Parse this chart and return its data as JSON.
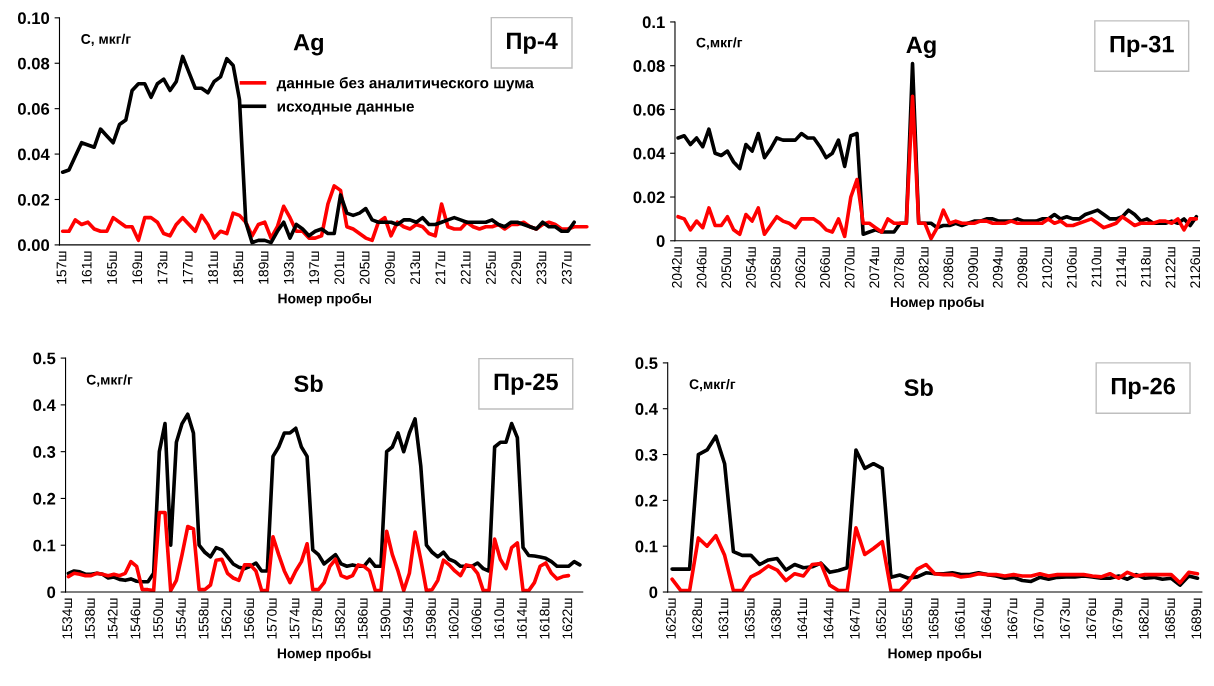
{
  "chart_data": [
    {
      "type": "line",
      "title": "Ag",
      "ylabel": "С, мкг/г",
      "xlabel": "Номер пробы",
      "annotations": [
        "Пр-4"
      ],
      "legend": "top right",
      "grid": false,
      "categories": [
        "157ш",
        null,
        null,
        null,
        "161ш",
        null,
        null,
        null,
        "165ш",
        null,
        null,
        null,
        "169ш",
        null,
        null,
        null,
        "173ш",
        null,
        null,
        null,
        "177ш",
        null,
        null,
        null,
        "181ш",
        null,
        null,
        null,
        "185ш",
        null,
        null,
        null,
        "189ш",
        null,
        null,
        null,
        "193ш",
        null,
        null,
        null,
        "197ш",
        null,
        null,
        null,
        "201ш",
        null,
        null,
        null,
        "205ш",
        null,
        null,
        null,
        "209ш",
        null,
        null,
        null,
        "213ш",
        null,
        null,
        null,
        "217ш",
        null,
        null,
        null,
        "221ш",
        null,
        null,
        null,
        "225ш",
        null,
        null,
        null,
        "229ш",
        null,
        null,
        null,
        "233ш",
        null,
        null,
        null,
        "237ш",
        null,
        null,
        null
      ],
      "ylim": [
        0,
        0.1
      ],
      "yticks": [
        {
          "value": 0,
          "label": "0.00"
        },
        0.02,
        0.04,
        0.06,
        0.08,
        {
          "value": 0.1,
          "label": "0.10"
        }
      ],
      "series": [
        {
          "name": "данные без аналитического шума",
          "color": "#ff0000",
          "values": [
            0.006,
            0.006,
            0.011,
            0.009,
            0.01,
            0.007,
            0.006,
            0.006,
            0.012,
            0.01,
            0.008,
            0.008,
            0.002,
            0.012,
            0.012,
            0.01,
            0.005,
            0.004,
            0.009,
            0.012,
            0.009,
            0.006,
            0.013,
            0.009,
            0.003,
            0.006,
            0.005,
            0.014,
            0.013,
            0.01,
            0.004,
            0.009,
            0.01,
            0.003,
            0.008,
            0.017,
            0.012,
            0.006,
            0.006,
            0.003,
            0.003,
            0.004,
            0.018,
            0.026,
            0.024,
            0.008,
            0.007,
            0.005,
            0.003,
            0.002,
            0.01,
            0.012,
            0.004,
            0.01,
            0.008,
            0.007,
            0.009,
            0.008,
            0.005,
            0.004,
            0.018,
            0.008,
            0.007,
            0.007,
            0.01,
            0.008,
            0.007,
            0.008,
            0.008,
            0.009,
            0.007,
            0.009,
            0.009,
            0.01,
            0.008,
            0.007,
            0.009,
            0.01,
            0.009,
            0.007,
            0.007,
            0.008,
            0.008,
            0.008
          ]
        },
        {
          "name": "исходные данные",
          "color": "#000000",
          "values": [
            0.032,
            0.033,
            0.039,
            0.045,
            0.044,
            0.043,
            0.051,
            0.048,
            0.045,
            0.053,
            0.055,
            0.068,
            0.071,
            0.071,
            0.065,
            0.071,
            0.073,
            0.068,
            0.072,
            0.083,
            0.076,
            0.069,
            0.069,
            0.067,
            0.072,
            0.074,
            0.082,
            0.079,
            0.064,
            0.01,
            0.001,
            0.002,
            0.002,
            0.001,
            0.006,
            0.01,
            0.003,
            0.009,
            0.007,
            0.004,
            0.006,
            0.007,
            0.005,
            0.005,
            0.022,
            0.014,
            0.013,
            0.014,
            0.016,
            0.011,
            0.01,
            0.01,
            0.01,
            0.009,
            0.011,
            0.011,
            0.01,
            0.012,
            0.009,
            0.009,
            0.01,
            0.011,
            0.012,
            0.011,
            0.01,
            0.01,
            0.01,
            0.01,
            0.011,
            0.009,
            0.008,
            0.01,
            0.01,
            0.009,
            0.008,
            0.007,
            0.01,
            0.008,
            0.008,
            0.006,
            0.006,
            0.01,
            null,
            null
          ]
        }
      ]
    },
    {
      "type": "line",
      "title": "Ag",
      "ylabel": "С,мкг/г",
      "xlabel": "Номер пробы",
      "annotations": [
        "Пр-31"
      ],
      "grid": false,
      "categories": [
        "2042ш",
        null,
        null,
        null,
        "2046ш",
        null,
        null,
        null,
        "2050ш",
        null,
        null,
        null,
        "2054ш",
        null,
        null,
        null,
        "2058ш",
        null,
        null,
        null,
        "2062ш",
        null,
        null,
        null,
        "2066ш",
        null,
        null,
        null,
        "2070ш",
        null,
        null,
        null,
        "2074ш",
        null,
        null,
        null,
        "2078ш",
        null,
        null,
        null,
        "2082ш",
        null,
        null,
        null,
        "2086ш",
        null,
        null,
        null,
        "2090ш",
        null,
        null,
        null,
        "2094ш",
        null,
        null,
        null,
        "2098ш",
        null,
        null,
        null,
        "2102ш",
        null,
        null,
        null,
        "2106ш",
        null,
        null,
        null,
        "2110ш",
        null,
        null,
        null,
        "2114ш",
        null,
        null,
        null,
        "2118ш",
        null,
        null,
        null,
        "2122ш",
        null,
        null,
        null,
        "2126ш"
      ],
      "ylim": [
        0,
        0.1
      ],
      "yticks": [
        0,
        0.02,
        0.04,
        0.06,
        0.08,
        0.1
      ],
      "series": [
        {
          "color": "#000000",
          "values": [
            0.047,
            0.048,
            0.044,
            0.047,
            0.043,
            0.051,
            0.04,
            0.039,
            0.041,
            0.036,
            0.033,
            0.044,
            0.041,
            0.049,
            0.038,
            0.042,
            0.047,
            0.046,
            0.046,
            0.046,
            0.049,
            0.047,
            0.047,
            0.043,
            0.038,
            0.04,
            0.046,
            0.034,
            0.048,
            0.049,
            0.003,
            0.004,
            0.005,
            0.004,
            0.004,
            0.004,
            0.008,
            0.008,
            0.081,
            0.008,
            0.008,
            0.008,
            0.006,
            0.007,
            0.007,
            0.008,
            0.007,
            0.008,
            0.009,
            0.009,
            0.01,
            0.01,
            0.009,
            0.009,
            0.009,
            0.01,
            0.009,
            0.009,
            0.009,
            0.01,
            0.01,
            0.012,
            0.01,
            0.011,
            0.01,
            0.01,
            0.012,
            0.013,
            0.014,
            0.012,
            0.01,
            0.01,
            0.011,
            0.014,
            0.012,
            0.009,
            0.01,
            0.008,
            0.008,
            0.008,
            0.009,
            0.008,
            0.01,
            0.007,
            0.011
          ]
        },
        {
          "color": "#ff0000",
          "values": [
            0.011,
            0.01,
            0.005,
            0.009,
            0.006,
            0.015,
            0.007,
            0.007,
            0.011,
            0.005,
            0.003,
            0.012,
            0.009,
            0.015,
            0.003,
            0.007,
            0.011,
            0.009,
            0.008,
            0.006,
            0.01,
            0.01,
            0.01,
            0.008,
            0.005,
            0.004,
            0.01,
            0.002,
            0.02,
            0.028,
            0.008,
            0.008,
            0.006,
            0.004,
            0.01,
            0.008,
            0.008,
            0.008,
            0.066,
            0.008,
            0.008,
            0.001,
            0.006,
            0.014,
            0.008,
            0.009,
            0.008,
            0.008,
            0.008,
            0.009,
            0.009,
            0.008,
            0.008,
            0.008,
            0.009,
            0.008,
            0.008,
            0.008,
            0.008,
            0.008,
            0.01,
            0.008,
            0.009,
            0.007,
            0.007,
            0.008,
            0.009,
            0.01,
            0.008,
            0.006,
            0.007,
            0.008,
            0.011,
            0.009,
            0.007,
            0.008,
            0.008,
            0.008,
            0.009,
            0.009,
            0.008,
            0.01,
            0.005,
            0.01,
            0.01
          ]
        }
      ]
    },
    {
      "type": "line",
      "title": "Sb",
      "ylabel": "С,мкг/г",
      "xlabel": "Номер пробы",
      "annotations": [
        "Пр-25"
      ],
      "grid": false,
      "categories": [
        "1534ш",
        null,
        null,
        null,
        "1538ш",
        null,
        null,
        null,
        "1542ш",
        null,
        null,
        null,
        "1546ш",
        null,
        null,
        null,
        "1550ш",
        null,
        null,
        null,
        "1554ш",
        null,
        null,
        null,
        "1558ш",
        null,
        null,
        null,
        "1562ш",
        null,
        null,
        null,
        "1566ш",
        null,
        null,
        null,
        "1570ш",
        null,
        null,
        null,
        "1574ш",
        null,
        null,
        null,
        "1578ш",
        null,
        null,
        null,
        "1582ш",
        null,
        null,
        null,
        "1586ш",
        null,
        null,
        null,
        "1590ш",
        null,
        null,
        null,
        "1594ш",
        null,
        null,
        null,
        "1598ш",
        null,
        null,
        null,
        "1602ш",
        null,
        null,
        null,
        "1606ш",
        null,
        null,
        null,
        "1610ш",
        null,
        null,
        null,
        "1614ш",
        null,
        null,
        null,
        "1618ш",
        null,
        null,
        null,
        "1622ш",
        null,
        null
      ],
      "ylim": [
        0,
        0.5
      ],
      "yticks": [
        0,
        0.1,
        0.2,
        0.3,
        0.4,
        0.5
      ],
      "series": [
        {
          "color": "#000000",
          "values": [
            0.04,
            0.045,
            0.043,
            0.038,
            0.038,
            0.04,
            0.038,
            0.03,
            0.032,
            0.027,
            0.025,
            0.028,
            0.023,
            0.022,
            0.022,
            0.04,
            0.3,
            0.36,
            0.1,
            0.32,
            0.36,
            0.38,
            0.34,
            0.1,
            0.085,
            0.075,
            0.095,
            0.09,
            0.075,
            0.06,
            0.053,
            0.05,
            0.055,
            0.062,
            0.045,
            0.045,
            0.29,
            0.31,
            0.34,
            0.34,
            0.35,
            0.31,
            0.29,
            0.09,
            0.08,
            0.06,
            0.07,
            0.08,
            0.06,
            0.055,
            0.058,
            0.055,
            0.055,
            0.07,
            0.055,
            0.055,
            0.3,
            0.31,
            0.34,
            0.3,
            0.34,
            0.37,
            0.27,
            0.1,
            0.085,
            0.075,
            0.085,
            0.07,
            0.065,
            0.055,
            0.055,
            0.055,
            0.062,
            0.05,
            0.045,
            0.31,
            0.32,
            0.32,
            0.36,
            0.33,
            0.095,
            0.078,
            0.077,
            0.075,
            0.072,
            0.065,
            0.055,
            0.055,
            0.055,
            0.065,
            0.058
          ]
        },
        {
          "color": "#ff0000",
          "values": [
            0.033,
            0.04,
            0.038,
            0.035,
            0.035,
            0.04,
            0.038,
            0.035,
            0.038,
            0.035,
            0.04,
            0.065,
            0.055,
            0.005,
            0.005,
            0.003,
            0.17,
            0.17,
            0.003,
            0.025,
            0.08,
            0.14,
            0.135,
            0.005,
            0.005,
            0.015,
            0.068,
            0.07,
            0.04,
            0.03,
            0.025,
            0.058,
            0.058,
            0.045,
            0.003,
            0.003,
            0.118,
            0.08,
            0.045,
            0.02,
            0.045,
            0.065,
            0.103,
            0.005,
            0.005,
            0.02,
            0.055,
            0.07,
            0.035,
            0.03,
            0.035,
            0.058,
            0.055,
            0.045,
            0.003,
            0.003,
            0.13,
            0.08,
            0.045,
            0.003,
            0.04,
            0.128,
            0.07,
            0.003,
            0.005,
            0.025,
            0.068,
            0.058,
            0.045,
            0.035,
            0.058,
            0.055,
            0.04,
            0.003,
            0.003,
            0.113,
            0.07,
            0.05,
            0.095,
            0.105,
            0.003,
            0.003,
            0.02,
            0.055,
            0.062,
            0.04,
            0.028,
            0.033,
            0.035,
            null,
            null
          ]
        }
      ]
    },
    {
      "type": "line",
      "title": "Sb",
      "ylabel": "С,мкг/г",
      "xlabel": "Номер пробы",
      "annotations": [
        "Пр-26"
      ],
      "grid": false,
      "categories": [
        "1625ш",
        null,
        null,
        "1628ш",
        null,
        null,
        "1631ш",
        null,
        null,
        "1635ш",
        null,
        null,
        "1638ш",
        null,
        null,
        "1641ш",
        null,
        null,
        "1644ш",
        null,
        null,
        "1647ш",
        null,
        null,
        "1652ш",
        null,
        null,
        "1655ш",
        null,
        null,
        "1658ш",
        null,
        null,
        "1661ш",
        null,
        null,
        "1664ш",
        null,
        null,
        "1667ш",
        null,
        null,
        "1670ш",
        null,
        null,
        "1673ш",
        null,
        null,
        "1676ш",
        null,
        null,
        "1679ш",
        null,
        null,
        "1682ш",
        null,
        null,
        "1685ш",
        null,
        null,
        "1689ш"
      ],
      "ylim": [
        0,
        0.5
      ],
      "yticks": [
        0,
        0.1,
        0.2,
        0.3,
        0.4,
        0.5
      ],
      "series": [
        {
          "color": "#000000",
          "values": [
            0.05,
            0.05,
            0.05,
            0.3,
            0.31,
            0.34,
            0.28,
            0.088,
            0.08,
            0.08,
            0.06,
            0.07,
            0.073,
            0.048,
            0.06,
            0.053,
            0.055,
            0.063,
            0.043,
            0.047,
            0.053,
            0.31,
            0.27,
            0.28,
            0.27,
            0.032,
            0.037,
            0.03,
            0.033,
            0.042,
            0.04,
            0.04,
            0.042,
            0.038,
            0.038,
            0.042,
            0.038,
            0.035,
            0.03,
            0.032,
            0.025,
            0.023,
            0.032,
            0.028,
            0.032,
            0.033,
            0.033,
            0.035,
            0.033,
            0.03,
            0.03,
            0.035,
            0.028,
            0.038,
            0.03,
            0.032,
            0.028,
            0.03,
            0.015,
            0.035,
            0.03
          ]
        },
        {
          "color": "#ff0000",
          "values": [
            0.028,
            0.003,
            0.003,
            0.118,
            0.1,
            0.123,
            0.08,
            0.003,
            0.003,
            0.033,
            0.043,
            0.057,
            0.048,
            0.025,
            0.04,
            0.035,
            0.06,
            0.062,
            0.015,
            0.003,
            0.003,
            0.14,
            0.082,
            0.095,
            0.11,
            0.003,
            0.003,
            0.023,
            0.05,
            0.06,
            0.04,
            0.038,
            0.038,
            0.033,
            0.035,
            0.04,
            0.038,
            0.038,
            0.035,
            0.038,
            0.035,
            0.035,
            0.04,
            0.035,
            0.038,
            0.038,
            0.038,
            0.038,
            0.035,
            0.033,
            0.04,
            0.03,
            0.043,
            0.035,
            0.038,
            0.038,
            0.038,
            0.038,
            0.02,
            0.043,
            0.04
          ]
        }
      ]
    }
  ]
}
